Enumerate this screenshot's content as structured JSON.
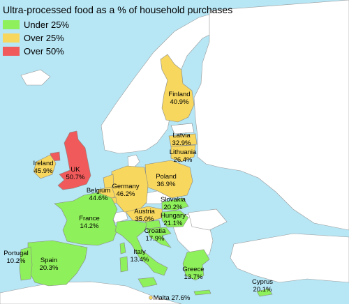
{
  "title": "Ultra-processed food as a % of household purchases",
  "colors": {
    "sea": "#b7e6f5",
    "land_other": "#ffffff",
    "border": "#999999",
    "under_25": "#8ef05a",
    "over_25": "#f7d75e",
    "over_50": "#f05a5a"
  },
  "legend": [
    {
      "label": "Under 25%",
      "color": "#8ef05a"
    },
    {
      "label": "Over 25%",
      "color": "#f7d75e"
    },
    {
      "label": "Over 50%",
      "color": "#f05a5a"
    }
  ],
  "countries": [
    {
      "name": "Finland",
      "value": "40.9%",
      "category": "over_25"
    },
    {
      "name": "Latvia",
      "value": "32.9%",
      "category": "over_25"
    },
    {
      "name": "Lithuania",
      "value": "26.4%",
      "category": "over_25"
    },
    {
      "name": "Ireland",
      "value": "45.9%",
      "category": "over_25"
    },
    {
      "name": "UK",
      "value": "50.7%",
      "category": "over_50"
    },
    {
      "name": "Poland",
      "value": "36.9%",
      "category": "over_25"
    },
    {
      "name": "Germany",
      "value": "46.2%",
      "category": "over_25"
    },
    {
      "name": "Belgium",
      "value": "44.6%",
      "category": "over_25"
    },
    {
      "name": "Slovakia",
      "value": "20.2%",
      "category": "under_25"
    },
    {
      "name": "Austria",
      "value": "35.0%",
      "category": "over_25"
    },
    {
      "name": "Hungary",
      "value": "21.1%",
      "category": "under_25"
    },
    {
      "name": "France",
      "value": "14.2%",
      "category": "under_25"
    },
    {
      "name": "Croatia",
      "value": "17.9%",
      "category": "under_25"
    },
    {
      "name": "Italy",
      "value": "13.4%",
      "category": "under_25"
    },
    {
      "name": "Portugal",
      "value": "10.2%",
      "category": "under_25"
    },
    {
      "name": "Spain",
      "value": "20.3%",
      "category": "under_25"
    },
    {
      "name": "Greece",
      "value": "13.7%",
      "category": "under_25"
    },
    {
      "name": "Cyprus",
      "value": "20.1%",
      "category": "under_25"
    },
    {
      "name": "Malta",
      "value": "27.6%",
      "category": "over_25"
    }
  ]
}
